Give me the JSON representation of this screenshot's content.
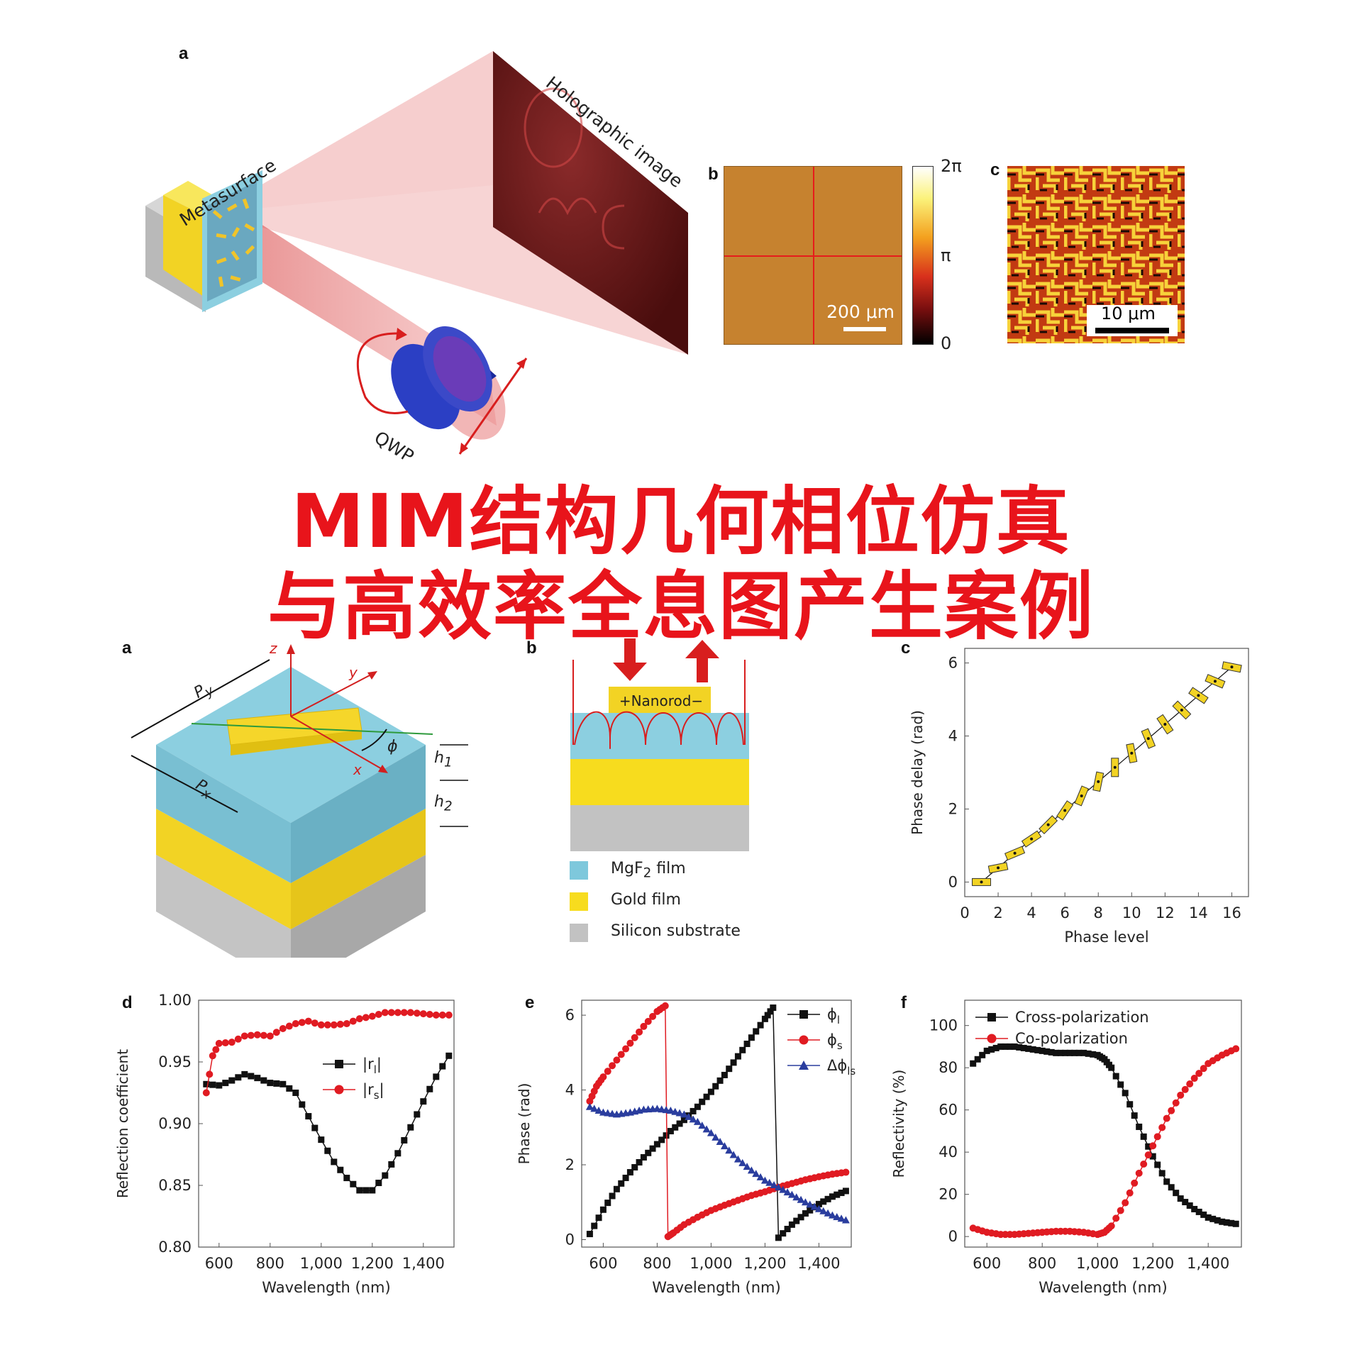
{
  "title": {
    "line1": "MIM结构几何相位仿真",
    "line2": "与高效率全息图产生案例"
  },
  "top": {
    "a": {
      "letter": "a",
      "metasurface": "Metasurface",
      "holographic": "Holographic image",
      "qwp": "QWP"
    },
    "b": {
      "letter": "b",
      "scale": "200 μm"
    },
    "colorbar": {
      "ticks": [
        "2π",
        "π",
        "0"
      ]
    },
    "c": {
      "letter": "c",
      "scale": "10 μm"
    }
  },
  "mid": {
    "a": {
      "letter": "a",
      "z": "z",
      "y": "y",
      "x": "x",
      "py": "P",
      "py_sub": "y",
      "px": "P",
      "px_sub": "x",
      "phi": "ϕ",
      "h1": "h",
      "h1_sub": "1",
      "h2": "h",
      "h2_sub": "2"
    },
    "b": {
      "letter": "b",
      "nanorod": "+Nanorod−",
      "legend": [
        {
          "label": "MgF",
          "sub": "2",
          "label2": " film",
          "color": "#7ec8dc"
        },
        {
          "label": "Gold film",
          "sub": "",
          "label2": "",
          "color": "#f7dc1e"
        },
        {
          "label": "Silicon substrate",
          "sub": "",
          "label2": "",
          "color": "#c2c2c2"
        }
      ]
    }
  },
  "chart_data": [
    {
      "panel": "c",
      "type": "scatter",
      "xlabel": "Phase level",
      "ylabel": "Phase delay (rad)",
      "xlim": [
        0,
        17
      ],
      "ylim": [
        -0.4,
        6.4
      ],
      "xticks": [
        "0",
        "2",
        "4",
        "6",
        "8",
        "10",
        "12",
        "14",
        "16"
      ],
      "yticks": [
        "0",
        "2",
        "4",
        "6"
      ],
      "x": [
        1,
        2,
        3,
        4,
        5,
        6,
        7,
        8,
        9,
        10,
        11,
        12,
        13,
        14,
        15,
        16
      ],
      "y": [
        0.0,
        0.39,
        0.79,
        1.18,
        1.57,
        1.96,
        2.36,
        2.75,
        3.14,
        3.53,
        3.93,
        4.32,
        4.71,
        5.11,
        5.5,
        5.89
      ],
      "grid": false
    },
    {
      "panel": "d",
      "type": "line",
      "xlabel": "Wavelength (nm)",
      "ylabel": "Reflection coefficient",
      "xlim": [
        520,
        1520
      ],
      "ylim": [
        0.8,
        1.0
      ],
      "xticks": [
        "600",
        "800",
        "1,000",
        "1,200",
        "1,400"
      ],
      "yticks": [
        "0.80",
        "0.85",
        "0.90",
        "0.95",
        "1.00"
      ],
      "legend_position": "upper-middle",
      "series": [
        {
          "name": "|r",
          "sub": "l",
          "color": "#111111",
          "marker": "square",
          "x": [
            550,
            600,
            650,
            700,
            750,
            800,
            850,
            900,
            950,
            1000,
            1050,
            1100,
            1150,
            1200,
            1250,
            1300,
            1350,
            1400,
            1450,
            1500
          ],
          "y": [
            0.932,
            0.931,
            0.935,
            0.94,
            0.937,
            0.933,
            0.932,
            0.925,
            0.906,
            0.887,
            0.869,
            0.856,
            0.846,
            0.846,
            0.858,
            0.876,
            0.897,
            0.918,
            0.938,
            0.955
          ]
        },
        {
          "name": "|r",
          "sub": "s",
          "color": "#e01b22",
          "marker": "circle",
          "x": [
            550,
            575,
            600,
            650,
            700,
            750,
            800,
            850,
            900,
            950,
            1000,
            1050,
            1100,
            1150,
            1200,
            1250,
            1300,
            1350,
            1400,
            1450,
            1500
          ],
          "y": [
            0.925,
            0.955,
            0.965,
            0.966,
            0.971,
            0.972,
            0.971,
            0.977,
            0.981,
            0.983,
            0.98,
            0.98,
            0.981,
            0.985,
            0.987,
            0.99,
            0.99,
            0.99,
            0.989,
            0.988,
            0.988
          ]
        }
      ]
    },
    {
      "panel": "e",
      "type": "line",
      "xlabel": "Wavelength (nm)",
      "ylabel": "Phase (rad)",
      "xlim": [
        520,
        1520
      ],
      "ylim": [
        -0.2,
        6.4
      ],
      "xticks": [
        "600",
        "800",
        "1,000",
        "1,200",
        "1,400"
      ],
      "yticks": [
        "0",
        "2",
        "4",
        "6"
      ],
      "legend_position": "top-right",
      "series": [
        {
          "name": "ϕ",
          "sub": "l",
          "color": "#111111",
          "marker": "square",
          "x": [
            550,
            600,
            650,
            700,
            750,
            800,
            850,
            900,
            950,
            1000,
            1050,
            1100,
            1150,
            1200,
            1230,
            1250,
            1300,
            1350,
            1400,
            1450,
            1500
          ],
          "y": [
            0.15,
            0.8,
            1.35,
            1.8,
            2.2,
            2.55,
            2.9,
            3.2,
            3.55,
            3.95,
            4.4,
            4.9,
            5.4,
            5.9,
            6.2,
            0.05,
            0.4,
            0.7,
            0.95,
            1.15,
            1.3
          ]
        },
        {
          "name": "ϕ",
          "sub": "s",
          "color": "#e01b22",
          "marker": "circle",
          "x": [
            550,
            575,
            600,
            650,
            700,
            750,
            800,
            830,
            840,
            860,
            900,
            950,
            1000,
            1050,
            1100,
            1150,
            1200,
            1250,
            1300,
            1350,
            1400,
            1450,
            1500
          ],
          "y": [
            3.7,
            4.1,
            4.35,
            4.8,
            5.25,
            5.7,
            6.1,
            6.25,
            0.08,
            0.18,
            0.4,
            0.6,
            0.78,
            0.92,
            1.05,
            1.18,
            1.28,
            1.4,
            1.5,
            1.6,
            1.68,
            1.75,
            1.8
          ]
        },
        {
          "name": "Δϕ",
          "sub": "ls",
          "color": "#2a3d9e",
          "marker": "triangle",
          "x": [
            550,
            600,
            650,
            700,
            750,
            800,
            850,
            900,
            950,
            1000,
            1050,
            1100,
            1150,
            1200,
            1250,
            1300,
            1350,
            1400,
            1450,
            1500
          ],
          "y": [
            3.55,
            3.4,
            3.35,
            3.4,
            3.48,
            3.5,
            3.45,
            3.35,
            3.15,
            2.85,
            2.5,
            2.15,
            1.85,
            1.58,
            1.4,
            1.2,
            1.0,
            0.82,
            0.65,
            0.52
          ]
        }
      ]
    },
    {
      "panel": "f",
      "type": "line",
      "xlabel": "Wavelength (nm)",
      "ylabel": "Reflectivity (%)",
      "xlim": [
        520,
        1520
      ],
      "ylim": [
        -5,
        112
      ],
      "xticks": [
        "600",
        "800",
        "1,000",
        "1,200",
        "1,400"
      ],
      "yticks": [
        "0",
        "20",
        "40",
        "60",
        "80",
        "100"
      ],
      "legend_position": "top-left",
      "series": [
        {
          "name": "Cross-polarization",
          "sub": "",
          "color": "#111111",
          "marker": "square",
          "x": [
            550,
            600,
            650,
            700,
            750,
            800,
            850,
            900,
            950,
            1000,
            1025,
            1050,
            1100,
            1150,
            1200,
            1250,
            1300,
            1350,
            1400,
            1450,
            1500
          ],
          "y": [
            82,
            88,
            90,
            90,
            89,
            88,
            87,
            87,
            87,
            86,
            84,
            80,
            68,
            52,
            38,
            26,
            18,
            13,
            9,
            7,
            6
          ]
        },
        {
          "name": "Co-polarization",
          "sub": "",
          "color": "#e01b22",
          "marker": "circle",
          "x": [
            550,
            600,
            650,
            700,
            750,
            800,
            850,
            900,
            950,
            1000,
            1025,
            1050,
            1100,
            1150,
            1200,
            1250,
            1300,
            1350,
            1400,
            1450,
            1500
          ],
          "y": [
            4,
            2,
            1,
            1,
            1.5,
            2,
            2.5,
            2.5,
            2,
            1,
            2,
            5,
            16,
            30,
            43,
            56,
            67,
            75,
            82,
            86,
            89
          ]
        }
      ]
    }
  ]
}
